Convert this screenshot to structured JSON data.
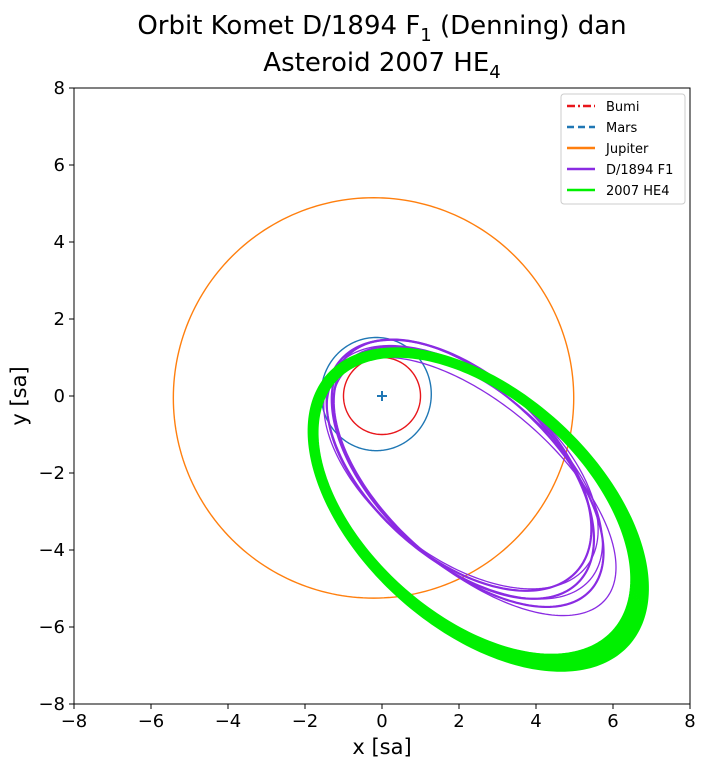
{
  "chart_data": {
    "type": "line",
    "title": {
      "line1_prefix": "Orbit Komet D/1894 F",
      "line1_sub": "1",
      "line1_suffix": " (Denning) dan",
      "line2_prefix": "Asteroid 2007 HE",
      "line2_sub": "4"
    },
    "xlabel": "x [sa]",
    "ylabel": "y [sa]",
    "xlim": [
      -8,
      8
    ],
    "ylim": [
      -8,
      8
    ],
    "xticks": [
      "−8",
      "−6",
      "−4",
      "−2",
      "0",
      "2",
      "4",
      "6",
      "8"
    ],
    "yticks": [
      "−8",
      "−6",
      "−4",
      "−2",
      "0",
      "2",
      "4",
      "6",
      "8"
    ],
    "tick_values": [
      -8,
      -6,
      -4,
      -2,
      0,
      2,
      4,
      6,
      8
    ],
    "grid": false,
    "legend_position": "top-right",
    "sun_marker": {
      "x": 0,
      "y": 0,
      "color": "#1f77b4"
    },
    "series": [
      {
        "name": "Bumi",
        "color": "#e8161b",
        "linestyle": "dashdot",
        "center": [
          0,
          0
        ],
        "semi_axes": [
          1.0,
          1.0
        ],
        "rotation_deg": 0
      },
      {
        "name": "Mars",
        "color": "#1f77b4",
        "linestyle": "dashed",
        "center": [
          -0.15,
          0.05
        ],
        "semi_axes": [
          1.43,
          1.47
        ],
        "rotation_deg": 0
      },
      {
        "name": "Jupiter",
        "color": "#ff7f0e",
        "linestyle": "solid",
        "center": [
          -0.22,
          -0.05
        ],
        "semi_axes": [
          5.2,
          5.2
        ],
        "rotation_deg": 0
      },
      {
        "name": "D/1894 F1",
        "color": "#8a2be2",
        "linestyle": "solid",
        "center": [
          2.1,
          -1.9
        ],
        "semi_axes": [
          4.2,
          2.3
        ],
        "rotation_deg": -42,
        "offsets": [
          [
            0,
            0
          ],
          [
            0.15,
            -0.2
          ],
          [
            -0.1,
            0.1
          ],
          [
            0.3,
            -0.45
          ],
          [
            0.05,
            -0.15
          ],
          [
            -0.05,
            0.05
          ]
        ],
        "scale_var": [
          1.0,
          1.03,
          0.98,
          1.07,
          1.01,
          0.99
        ]
      },
      {
        "name": "2007 HE4",
        "color": "#00f000",
        "linestyle": "solid",
        "center": [
          2.45,
          -2.9
        ],
        "semi_axes": [
          5.05,
          2.95
        ],
        "rotation_deg": -42,
        "band_count": 14,
        "band_spread": 0.12
      }
    ]
  }
}
